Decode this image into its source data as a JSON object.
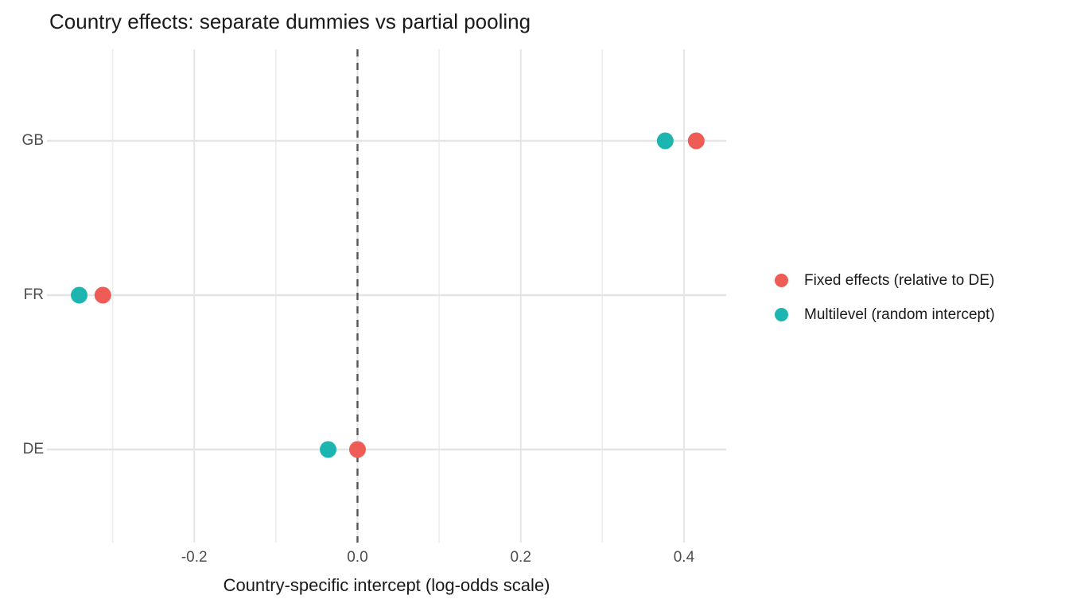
{
  "chart_data": {
    "type": "scatter",
    "variant": "horizontal-dot-plot",
    "title": "Country effects: separate dummies vs partial pooling",
    "xlabel": "Country-specific intercept (log-odds scale)",
    "ylabel": "",
    "categories": [
      "GB",
      "FR",
      "DE"
    ],
    "series": [
      {
        "name": "Fixed effects (relative to DE)",
        "color": "#ef5b55",
        "values": [
          0.415,
          -0.312,
          0.0
        ]
      },
      {
        "name": "Multilevel (random intercept)",
        "color": "#1cb5b0",
        "values": [
          0.377,
          -0.341,
          -0.036
        ]
      }
    ],
    "xlim": [
      -0.3805,
      0.4517
    ],
    "x_major_ticks": [
      -0.2,
      0.0,
      0.2,
      0.4
    ],
    "x_tick_labels": [
      "-0.2",
      "0.0",
      "0.2",
      "0.4"
    ],
    "x_minor_ticks": [
      -0.3,
      -0.1,
      0.1,
      0.3
    ],
    "reference_line_x": 0.0,
    "grid": true,
    "legend_position": "right"
  },
  "colors": {
    "background": "#ffffff",
    "grid_major": "#e5e5e5",
    "grid_minor": "#ededed",
    "reference_line": "#555555",
    "axis_text": "#4d4d4d",
    "text": "#1a1a1a"
  }
}
